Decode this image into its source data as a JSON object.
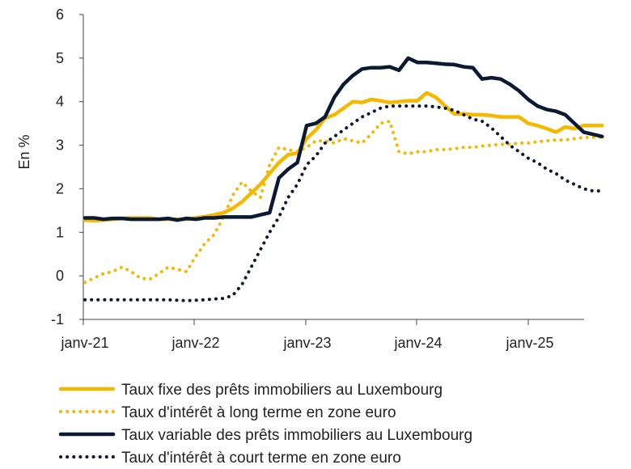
{
  "chart_data": {
    "type": "line",
    "ylabel": "En %",
    "xlabel": "",
    "ylim": [
      -1,
      6
    ],
    "yticks": [
      "-1",
      "0",
      "1",
      "2",
      "3",
      "4",
      "5",
      "6"
    ],
    "xticks": [
      "janv-21",
      "janv-22",
      "janv-23",
      "janv-24",
      "janv-25"
    ],
    "x_start": "2021-01",
    "x_end": "2025-07",
    "grid": false,
    "legend_position": "bottom",
    "series": [
      {
        "name": "Taux fixe des prêts immobiliers au Luxembourg",
        "color": "#f5b800",
        "style": "solid",
        "values": [
          1.28,
          1.27,
          1.28,
          1.3,
          1.32,
          1.33,
          1.33,
          1.33,
          1.3,
          1.3,
          1.3,
          1.3,
          1.33,
          1.36,
          1.4,
          1.45,
          1.55,
          1.7,
          1.9,
          2.1,
          2.35,
          2.6,
          2.78,
          2.82,
          3.15,
          3.35,
          3.62,
          3.7,
          3.85,
          4.0,
          3.98,
          4.05,
          4.02,
          3.98,
          4.0,
          4.02,
          4.02,
          4.2,
          4.1,
          3.9,
          3.72,
          3.72,
          3.7,
          3.7,
          3.68,
          3.65,
          3.65,
          3.65,
          3.5,
          3.45,
          3.38,
          3.3,
          3.42,
          3.38,
          3.45,
          3.45,
          3.45
        ]
      },
      {
        "name": "Taux d'intérêt à long terme en zone euro",
        "color": "#f5b800",
        "style": "dotted",
        "values": [
          -0.15,
          -0.05,
          0.05,
          0.1,
          0.2,
          0.1,
          -0.05,
          -0.08,
          0.05,
          0.2,
          0.15,
          0.1,
          0.45,
          0.75,
          0.95,
          1.35,
          1.85,
          2.15,
          1.95,
          1.8,
          2.55,
          2.95,
          2.9,
          2.85,
          2.95,
          3.1,
          3.1,
          3.05,
          3.15,
          3.1,
          3.05,
          3.25,
          3.5,
          3.55,
          2.85,
          2.8,
          2.85,
          2.85,
          2.9,
          2.9,
          2.92,
          2.95,
          2.95,
          2.98,
          3.0,
          3.02,
          3.02,
          3.05,
          3.05,
          3.08,
          3.1,
          3.12,
          3.12,
          3.15,
          3.18,
          3.18,
          3.18
        ]
      },
      {
        "name": "Taux variable des prêts immobiliers au Luxembourg",
        "color": "#0b1a33",
        "style": "solid",
        "values": [
          1.33,
          1.33,
          1.3,
          1.32,
          1.32,
          1.3,
          1.3,
          1.3,
          1.3,
          1.32,
          1.28,
          1.32,
          1.3,
          1.33,
          1.33,
          1.35,
          1.35,
          1.35,
          1.35,
          1.4,
          1.45,
          2.25,
          2.45,
          2.6,
          3.45,
          3.5,
          3.65,
          4.1,
          4.4,
          4.6,
          4.75,
          4.78,
          4.78,
          4.8,
          4.72,
          5.0,
          4.9,
          4.9,
          4.88,
          4.86,
          4.85,
          4.8,
          4.78,
          4.52,
          4.55,
          4.52,
          4.4,
          4.25,
          4.05,
          3.9,
          3.82,
          3.78,
          3.7,
          3.5,
          3.3,
          3.25,
          3.2
        ]
      },
      {
        "name": "Taux d'intérêt à court terme en zone euro",
        "color": "#0b1a33",
        "style": "dotted",
        "values": [
          -0.55,
          -0.55,
          -0.55,
          -0.55,
          -0.55,
          -0.55,
          -0.55,
          -0.55,
          -0.55,
          -0.55,
          -0.56,
          -0.57,
          -0.56,
          -0.55,
          -0.53,
          -0.52,
          -0.45,
          -0.2,
          0.2,
          0.6,
          1.0,
          1.35,
          1.8,
          2.1,
          2.55,
          2.75,
          3.05,
          3.2,
          3.35,
          3.5,
          3.65,
          3.75,
          3.85,
          3.9,
          3.9,
          3.9,
          3.9,
          3.9,
          3.88,
          3.85,
          3.8,
          3.7,
          3.6,
          3.55,
          3.4,
          3.2,
          3.0,
          2.85,
          2.7,
          2.6,
          2.45,
          2.35,
          2.2,
          2.1,
          2.0,
          1.95,
          1.95
        ]
      }
    ]
  }
}
